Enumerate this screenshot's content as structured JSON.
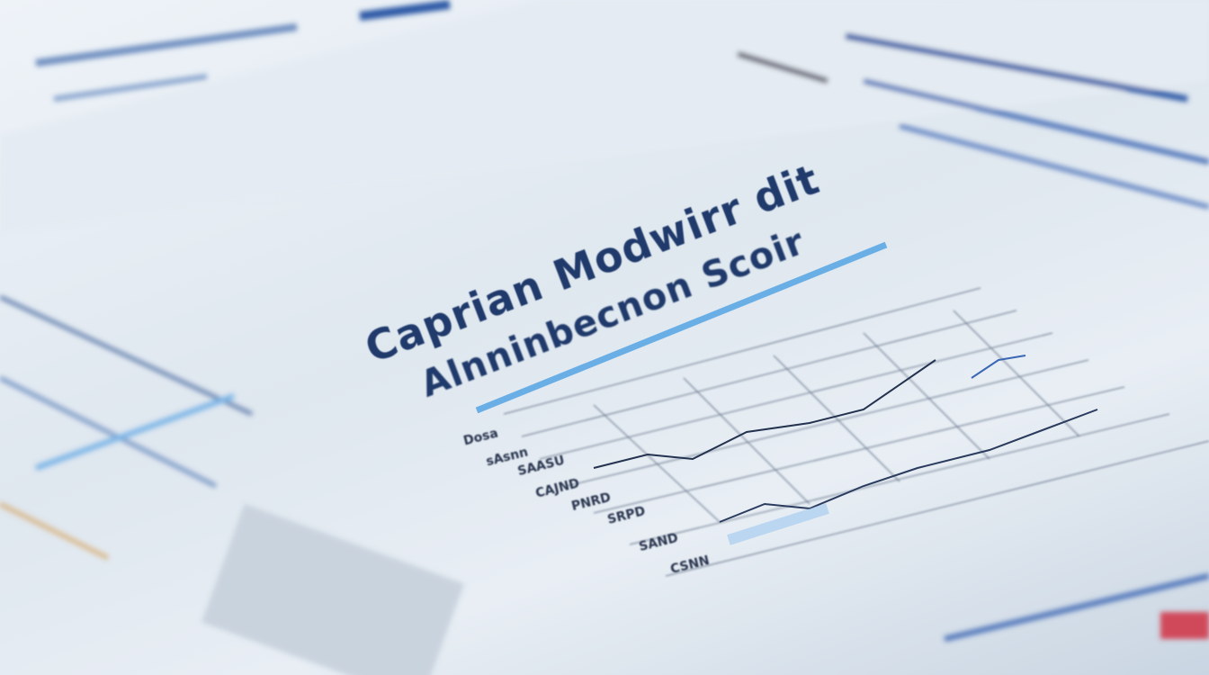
{
  "document": {
    "title_line1": "Caprian Modwirr dit",
    "title_line2": "Alnninbecnon Scoir",
    "row_labels": [
      "Dosa",
      "sAsnn",
      "SAASU",
      "CAJND",
      "PNRD",
      "SRPD",
      "SAND",
      "CSNN"
    ]
  },
  "colors": {
    "title": "#1f3a6b",
    "accent_bar": "#6aaee6",
    "paper": "#e9eff5"
  }
}
